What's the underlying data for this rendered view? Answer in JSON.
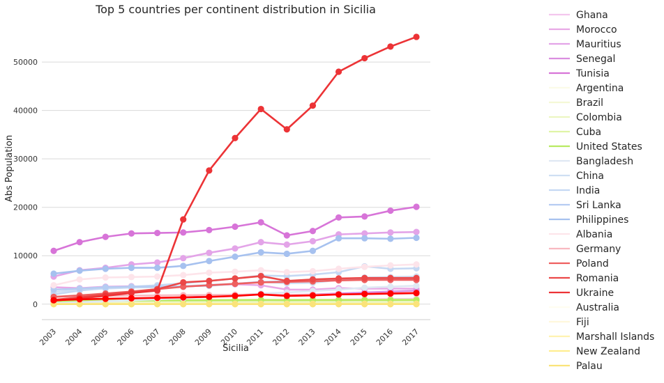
{
  "chart_data": {
    "type": "line",
    "title": "Top 5 countries per continent distribution in Sicilia",
    "xlabel": "Sicilia",
    "ylabel": "Abs Population",
    "categories": [
      "2003",
      "2004",
      "2005",
      "2006",
      "2007",
      "2008",
      "2009",
      "2010",
      "2011",
      "2012",
      "2013",
      "2014",
      "2015",
      "2016",
      "2017"
    ],
    "ylim": [
      -3200,
      58500
    ],
    "yticks": [
      0,
      10000,
      20000,
      30000,
      40000,
      50000
    ],
    "grid": "horizontal",
    "legend_position": "right, outside plot",
    "series": [
      {
        "name": "Ghana",
        "color": "#f3c6ee",
        "values": [
          400,
          450,
          500,
          550,
          600,
          650,
          700,
          750,
          800,
          850,
          900,
          950,
          1000,
          1050,
          1100
        ]
      },
      {
        "name": "Morocco",
        "color": "#e8a8e6",
        "values": [
          3500,
          3300,
          3600,
          3700,
          3500,
          3600,
          3900,
          4100,
          3900,
          3000,
          3000,
          3300,
          3200,
          3200,
          3200
        ]
      },
      {
        "name": "Mauritius",
        "color": "#e3a4e8",
        "values": [
          5700,
          7000,
          7500,
          8200,
          8600,
          9500,
          10600,
          11500,
          12800,
          12300,
          13000,
          14400,
          14600,
          14800,
          14900
        ]
      },
      {
        "name": "Senegal",
        "color": "#da8ee0",
        "values": [
          300,
          500,
          800,
          1000,
          1200,
          1400,
          1600,
          1800,
          2000,
          1900,
          2000,
          2200,
          2400,
          2600,
          2800
        ]
      },
      {
        "name": "Tunisia",
        "color": "#d774d8",
        "values": [
          11000,
          12800,
          13900,
          14600,
          14700,
          14800,
          15300,
          16000,
          16900,
          14200,
          15100,
          17900,
          18100,
          19300,
          20100
        ]
      },
      {
        "name": "Argentina",
        "color": "#fbfbe8",
        "values": [
          400,
          450,
          500,
          520,
          540,
          560,
          580,
          600,
          620,
          600,
          610,
          620,
          630,
          640,
          650
        ]
      },
      {
        "name": "Brazil",
        "color": "#f4f8d6",
        "values": [
          300,
          400,
          500,
          550,
          600,
          650,
          700,
          750,
          800,
          780,
          800,
          820,
          850,
          870,
          900
        ]
      },
      {
        "name": "Colombia",
        "color": "#ecf6c2",
        "values": [
          100,
          150,
          200,
          230,
          260,
          290,
          320,
          350,
          380,
          370,
          380,
          390,
          400,
          410,
          420
        ]
      },
      {
        "name": "Cuba",
        "color": "#dff4a6",
        "values": [
          700,
          750,
          800,
          820,
          840,
          860,
          880,
          900,
          920,
          900,
          910,
          920,
          930,
          940,
          950
        ]
      },
      {
        "name": "United States",
        "color": "#b8ea62",
        "values": [
          600,
          650,
          700,
          720,
          740,
          760,
          780,
          800,
          820,
          800,
          810,
          820,
          830,
          840,
          850
        ]
      },
      {
        "name": "Bangladesh",
        "color": "#dfe8f3",
        "values": [
          200,
          400,
          600,
          800,
          1000,
          1200,
          1500,
          1800,
          2200,
          2400,
          2700,
          3000,
          3400,
          3600,
          3800
        ]
      },
      {
        "name": "China",
        "color": "#cfdff3",
        "values": [
          2500,
          3000,
          3200,
          3400,
          3500,
          3700,
          4000,
          4200,
          4600,
          4300,
          4400,
          5000,
          5500,
          5600,
          5700
        ]
      },
      {
        "name": "India",
        "color": "#c5d8f3",
        "values": [
          2000,
          2800,
          3300,
          3600,
          3900,
          4300,
          4800,
          5300,
          5900,
          5800,
          6100,
          6600,
          7800,
          7300,
          7400
        ]
      },
      {
        "name": "Sri Lanka",
        "color": "#b6ccf2",
        "values": [
          3000,
          3200,
          3500,
          3600,
          3600,
          3700,
          3800,
          4200,
          4600,
          4700,
          4800,
          5000,
          5200,
          5200,
          5300
        ]
      },
      {
        "name": "Philippines",
        "color": "#a6c1ef",
        "values": [
          6300,
          6900,
          7300,
          7500,
          7500,
          7900,
          8900,
          9800,
          10700,
          10400,
          11000,
          13600,
          13600,
          13500,
          13700
        ]
      },
      {
        "name": "Albania",
        "color": "#fde4ea",
        "values": [
          3900,
          5100,
          5500,
          5600,
          5700,
          6000,
          6500,
          6700,
          7000,
          6600,
          6800,
          7300,
          7700,
          8000,
          8200
        ]
      },
      {
        "name": "Germany",
        "color": "#f8b8c0",
        "values": [
          1500,
          1600,
          1700,
          1750,
          1800,
          1850,
          1900,
          1950,
          2000,
          1900,
          1950,
          2000,
          2050,
          2100,
          2150
        ]
      },
      {
        "name": "Poland",
        "color": "#ee5f5f",
        "values": [
          1500,
          1800,
          2200,
          2600,
          3100,
          3600,
          3900,
          4200,
          4500,
          4600,
          4700,
          4900,
          5000,
          5000,
          5000
        ]
      },
      {
        "name": "Romania",
        "color": "#eb4848",
        "values": [
          900,
          1400,
          2000,
          2500,
          3100,
          4500,
          4800,
          5300,
          5800,
          4800,
          5100,
          5300,
          5400,
          5400,
          5400
        ]
      },
      {
        "name": "Ukraine",
        "color": "#ec3336",
        "values": [
          700,
          1200,
          1700,
          2300,
          2800,
          17500,
          27600,
          34300,
          40300,
          36100,
          41000,
          48000,
          50800,
          53200,
          55200
        ]
      },
      {
        "name": "Australia",
        "color": "#fffdf0",
        "values": [
          20,
          25,
          30,
          30,
          35,
          35,
          40,
          40,
          45,
          45,
          45,
          50,
          50,
          50,
          55
        ]
      },
      {
        "name": "Fiji",
        "color": "#fff8dc",
        "values": [
          10,
          10,
          15,
          15,
          15,
          20,
          20,
          20,
          20,
          20,
          20,
          25,
          25,
          25,
          25
        ]
      },
      {
        "name": "Marshall Islands",
        "color": "#fff2b0",
        "values": [
          5,
          5,
          5,
          5,
          5,
          5,
          5,
          5,
          5,
          5,
          5,
          5,
          5,
          5,
          5
        ]
      },
      {
        "name": "New Zealand",
        "color": "#ffee90",
        "values": [
          30,
          35,
          40,
          40,
          45,
          45,
          50,
          50,
          55,
          55,
          55,
          60,
          60,
          60,
          65
        ]
      },
      {
        "name": "Palau",
        "color": "#fae37a",
        "values": [
          0,
          0,
          0,
          0,
          0,
          0,
          0,
          0,
          0,
          0,
          0,
          0,
          0,
          0,
          0
        ]
      },
      {
        "name": "",
        "color": "#ff0000",
        "values": [
          800,
          1000,
          1100,
          1200,
          1300,
          1400,
          1500,
          1700,
          2000,
          1700,
          1800,
          2000,
          2100,
          2200,
          2300
        ]
      }
    ]
  }
}
